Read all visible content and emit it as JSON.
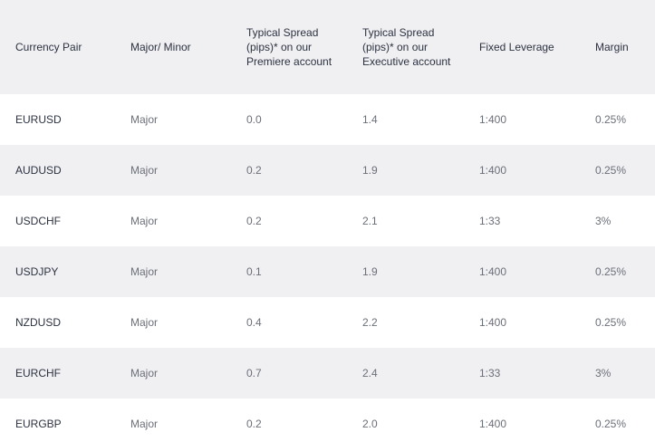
{
  "table": {
    "headers": [
      "Currency Pair",
      "Major/ Minor",
      "Typical Spread (pips)* on our Premiere account",
      "Typical Spread (pips)* on our Executive account",
      "Fixed Leverage",
      "Margin"
    ],
    "rows": [
      {
        "pair": "EURUSD",
        "type": "Major",
        "premiere": "0.0",
        "executive": "1.4",
        "leverage": "1:400",
        "margin": "0.25%"
      },
      {
        "pair": "AUDUSD",
        "type": "Major",
        "premiere": "0.2",
        "executive": "1.9",
        "leverage": "1:400",
        "margin": "0.25%"
      },
      {
        "pair": "USDCHF",
        "type": "Major",
        "premiere": "0.2",
        "executive": "2.1",
        "leverage": "1:33",
        "margin": "3%"
      },
      {
        "pair": "USDJPY",
        "type": "Major",
        "premiere": "0.1",
        "executive": "1.9",
        "leverage": "1:400",
        "margin": "0.25%"
      },
      {
        "pair": "NZDUSD",
        "type": "Major",
        "premiere": "0.4",
        "executive": "2.2",
        "leverage": "1:400",
        "margin": "0.25%"
      },
      {
        "pair": "EURCHF",
        "type": "Major",
        "premiere": "0.7",
        "executive": "2.4",
        "leverage": "1:33",
        "margin": "3%"
      },
      {
        "pair": "EURGBP",
        "type": "Major",
        "premiere": "0.2",
        "executive": "2.0",
        "leverage": "1:400",
        "margin": "0.25%"
      }
    ]
  },
  "colors": {
    "header_bg": "#f0f0f3",
    "stripe_bg": "#f0f0f3",
    "text_dark": "#2c3240",
    "text_muted": "#6b6f78"
  }
}
